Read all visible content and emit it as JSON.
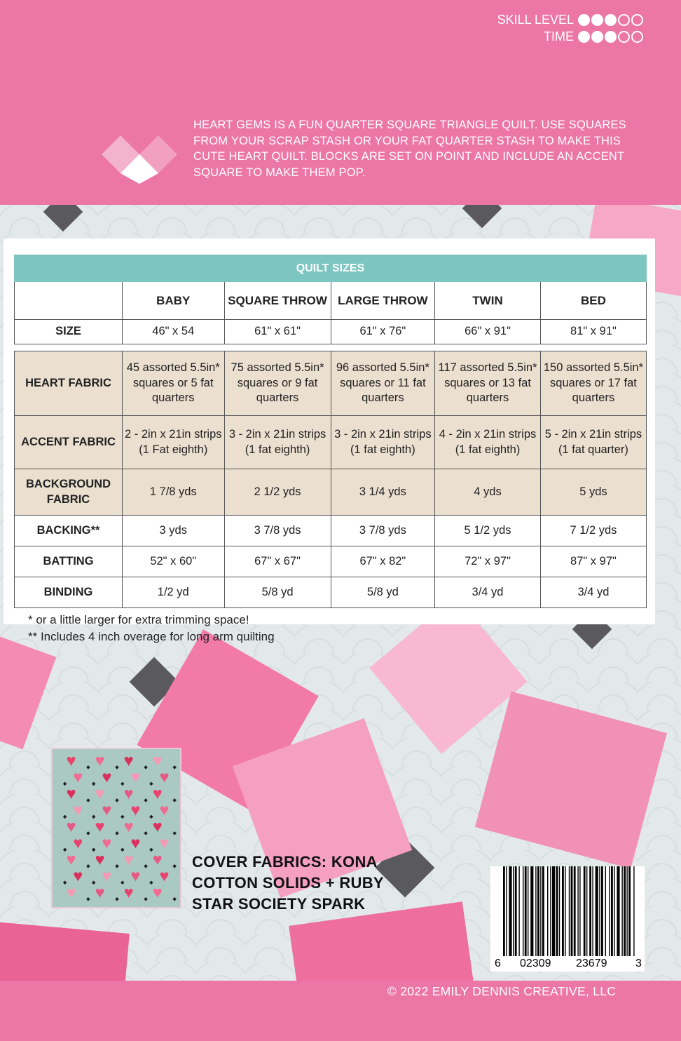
{
  "ratings": {
    "skill_label": "SKILL LEVEL",
    "skill_value": 3,
    "time_label": "TIME",
    "time_value": 3,
    "max": 5
  },
  "description": "HEART GEMS IS A FUN QUARTER SQUARE TRIANGLE QUILT.  USE SQUARES FROM YOUR SCRAP STASH OR YOUR FAT QUARTER STASH TO MAKE THIS CUTE HEART QUILT.  BLOCKS ARE SET ON POINT AND INCLUDE AN ACCENT SQUARE TO MAKE THEM POP.",
  "table": {
    "title": "QUILT SIZES",
    "columns": [
      "BABY",
      "SQUARE THROW",
      "LARGE THROW",
      "TWIN",
      "BED"
    ],
    "size_row": {
      "label": "SIZE",
      "values": [
        "46\" x 54",
        "61\" x 61\"",
        "61\" x 76\"",
        "66\" x 91\"",
        "81\" x 91\""
      ]
    },
    "rows": [
      {
        "label": "HEART FABRIC",
        "values": [
          "45 assorted 5.5in* squares or 5 fat quarters",
          "75 assorted 5.5in* squares or 9 fat quarters",
          "96 assorted 5.5in* squares or 11 fat quarters",
          "117 assorted 5.5in* squares or 13 fat quarters",
          "150 assorted 5.5in* squares or 17 fat quarters"
        ]
      },
      {
        "label": "ACCENT FABRIC",
        "values": [
          "2 - 2in x 21in strips (1 Fat eighth)",
          "3 - 2in x 21in strips (1 fat eighth)",
          "3 - 2in x 21in strips (1 fat eighth)",
          "4 - 2in x 21in strips (1 fat eighth)",
          "5 - 2in x 21in strips (1 fat quarter)"
        ]
      },
      {
        "label": "BACKGROUND FABRIC",
        "values": [
          "1 7/8 yds",
          "2 1/2 yds",
          "3 1/4 yds",
          "4 yds",
          "5 yds"
        ]
      },
      {
        "label": "BACKING**",
        "values": [
          "3 yds",
          "3 7/8 yds",
          "3 7/8 yds",
          "5 1/2 yds",
          "7 1/2 yds"
        ]
      },
      {
        "label": "BATTING",
        "values": [
          "52\" x 60\"",
          "67\" x 67\"",
          "67\" x 82\"",
          "72\" x 97\"",
          "87\" x 97\""
        ]
      },
      {
        "label": "BINDING",
        "values": [
          "1/2 yd",
          "5/8 yd",
          "5/8 yd",
          "3/4 yd",
          "3/4 yd"
        ]
      }
    ]
  },
  "footnotes": [
    "* or a little larger for extra trimming space!",
    "** Includes 4 inch overage for long arm quilting"
  ],
  "cover_fabrics": [
    "COVER FABRICS:  KONA",
    "COTTON SOLIDS + RUBY",
    "STAR SOCIETY SPARK"
  ],
  "barcode": {
    "left": "6",
    "group1": "02309",
    "group2": "23679",
    "right": "3"
  },
  "copyright": "© 2022 EMILY DENNIS CREATIVE, LLC",
  "colors": {
    "pink": "#ec76a6",
    "teal": "#7cc5c0",
    "tan": "#ebdfd0"
  }
}
